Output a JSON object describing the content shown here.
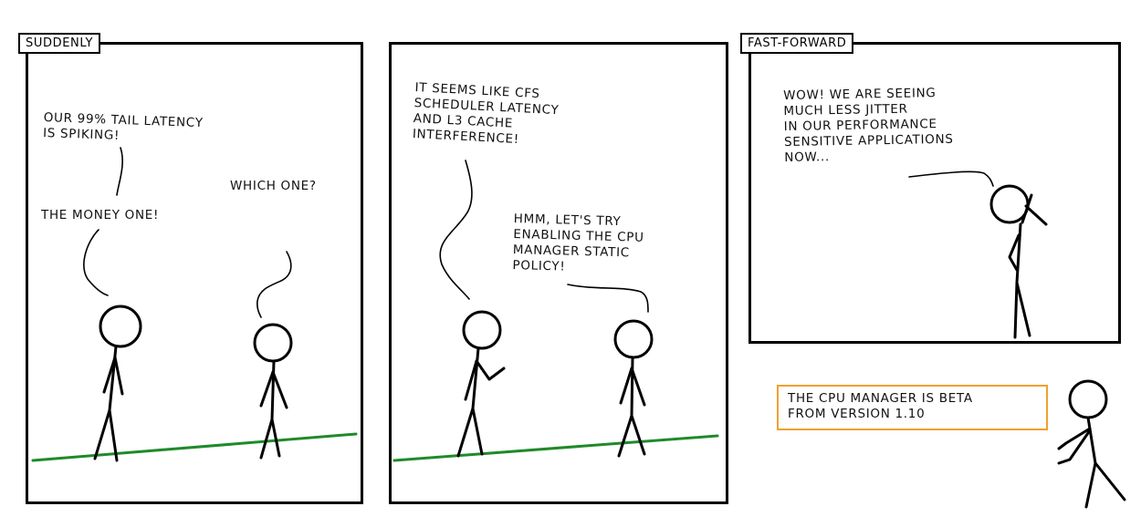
{
  "panels": [
    {
      "caption": "SUDDENLY"
    },
    {
      "caption": ""
    },
    {
      "caption": "FAST-FORWARD"
    }
  ],
  "dialogue": {
    "latency": "OUR 99% TAIL LATENCY\nIS SPIKING!",
    "money": "THE MONEY ONE!",
    "which": "WHICH ONE?",
    "cfs": "IT SEEMS LIKE CFS\nSCHEDULER LATENCY\nAND L3 CACHE\nINTERFERENCE!",
    "cpu_manager": "HMM, LET'S TRY\nENABLING THE CPU\nMANAGER STATIC\nPOLICY!",
    "wow": "WOW! WE ARE SEEING\nMUCH LESS JITTER\nIN OUR PERFORMANCE\nSENSITIVE APPLICATIONS\nNOW..."
  },
  "footnote": {
    "text": "THE CPU MANAGER IS BETA\nFROM VERSION 1.10",
    "border_color": "#f0a030"
  },
  "colors": {
    "ink": "#000000",
    "ground": "#1f8a2a",
    "note_border": "#f0a030"
  }
}
